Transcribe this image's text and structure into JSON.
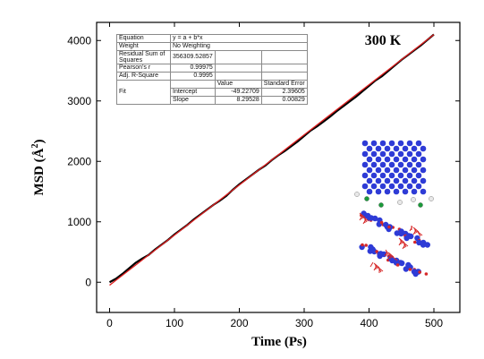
{
  "chart_data": {
    "type": "line",
    "annotation_title": "300 K",
    "xlabel": "Time (Ps)",
    "ylabel_main": "MSD (Å",
    "ylabel_sup": "2",
    "ylabel_close": ")",
    "xlim": [
      -20,
      540
    ],
    "ylim": [
      -500,
      4300
    ],
    "xticks": [
      0,
      100,
      200,
      300,
      400,
      500
    ],
    "yticks": [
      0,
      1000,
      2000,
      3000,
      4000
    ],
    "grid": false,
    "colors": {
      "data": "#000000",
      "fit": "#e02020"
    },
    "series": [
      {
        "x": [
          0,
          10,
          20,
          30,
          40,
          50,
          60,
          70,
          80,
          90,
          100,
          110,
          120,
          130,
          140,
          150,
          160,
          170,
          180,
          190,
          200,
          210,
          220,
          230,
          240,
          250,
          260,
          270,
          280,
          290,
          300,
          310,
          320,
          330,
          340,
          350,
          360,
          370,
          380,
          390,
          400,
          410,
          420,
          430,
          440,
          450,
          460,
          470,
          480,
          490,
          500
        ],
        "values": [
          0,
          60,
          140,
          230,
          320,
          390,
          450,
          540,
          620,
          700,
          790,
          870,
          950,
          1040,
          1120,
          1200,
          1280,
          1350,
          1430,
          1530,
          1620,
          1700,
          1780,
          1860,
          1930,
          2020,
          2100,
          2170,
          2250,
          2330,
          2420,
          2510,
          2580,
          2660,
          2740,
          2830,
          2910,
          2990,
          3070,
          3160,
          3250,
          3340,
          3410,
          3500,
          3590,
          3680,
          3760,
          3840,
          3920,
          4010,
          4100
        ]
      },
      {
        "fit_intercept": -49.22709,
        "fit_slope": 8.29528,
        "x": [
          0,
          500
        ]
      }
    ]
  },
  "fit_table": {
    "equation_label": "Equation",
    "equation_value": "y = a + b*x",
    "weight_label": "Weight",
    "weight_value": "No Weighting",
    "rss_label": "Residual Sum of Squares",
    "rss_value": "356309.52857",
    "pearson_label": "Pearson's r",
    "pearson_value": "0.99975",
    "adjr_label": "Adj. R-Square",
    "adjr_value": "0.9995",
    "value_header": "Value",
    "stderr_header": "Standard Error",
    "fit_label": "Fit",
    "intercept_label": "Intercept",
    "intercept_value": "-49.22709",
    "intercept_error": "2.39605",
    "slope_label": "Slope",
    "slope_value": "8.29528",
    "slope_error": "0.00829"
  },
  "inset": {
    "colors": {
      "blue_atoms": "#2e3bd6",
      "red_atoms": "#d62828",
      "green_atoms": "#1a9a3a",
      "white_atoms": "#e8e8e8"
    }
  }
}
